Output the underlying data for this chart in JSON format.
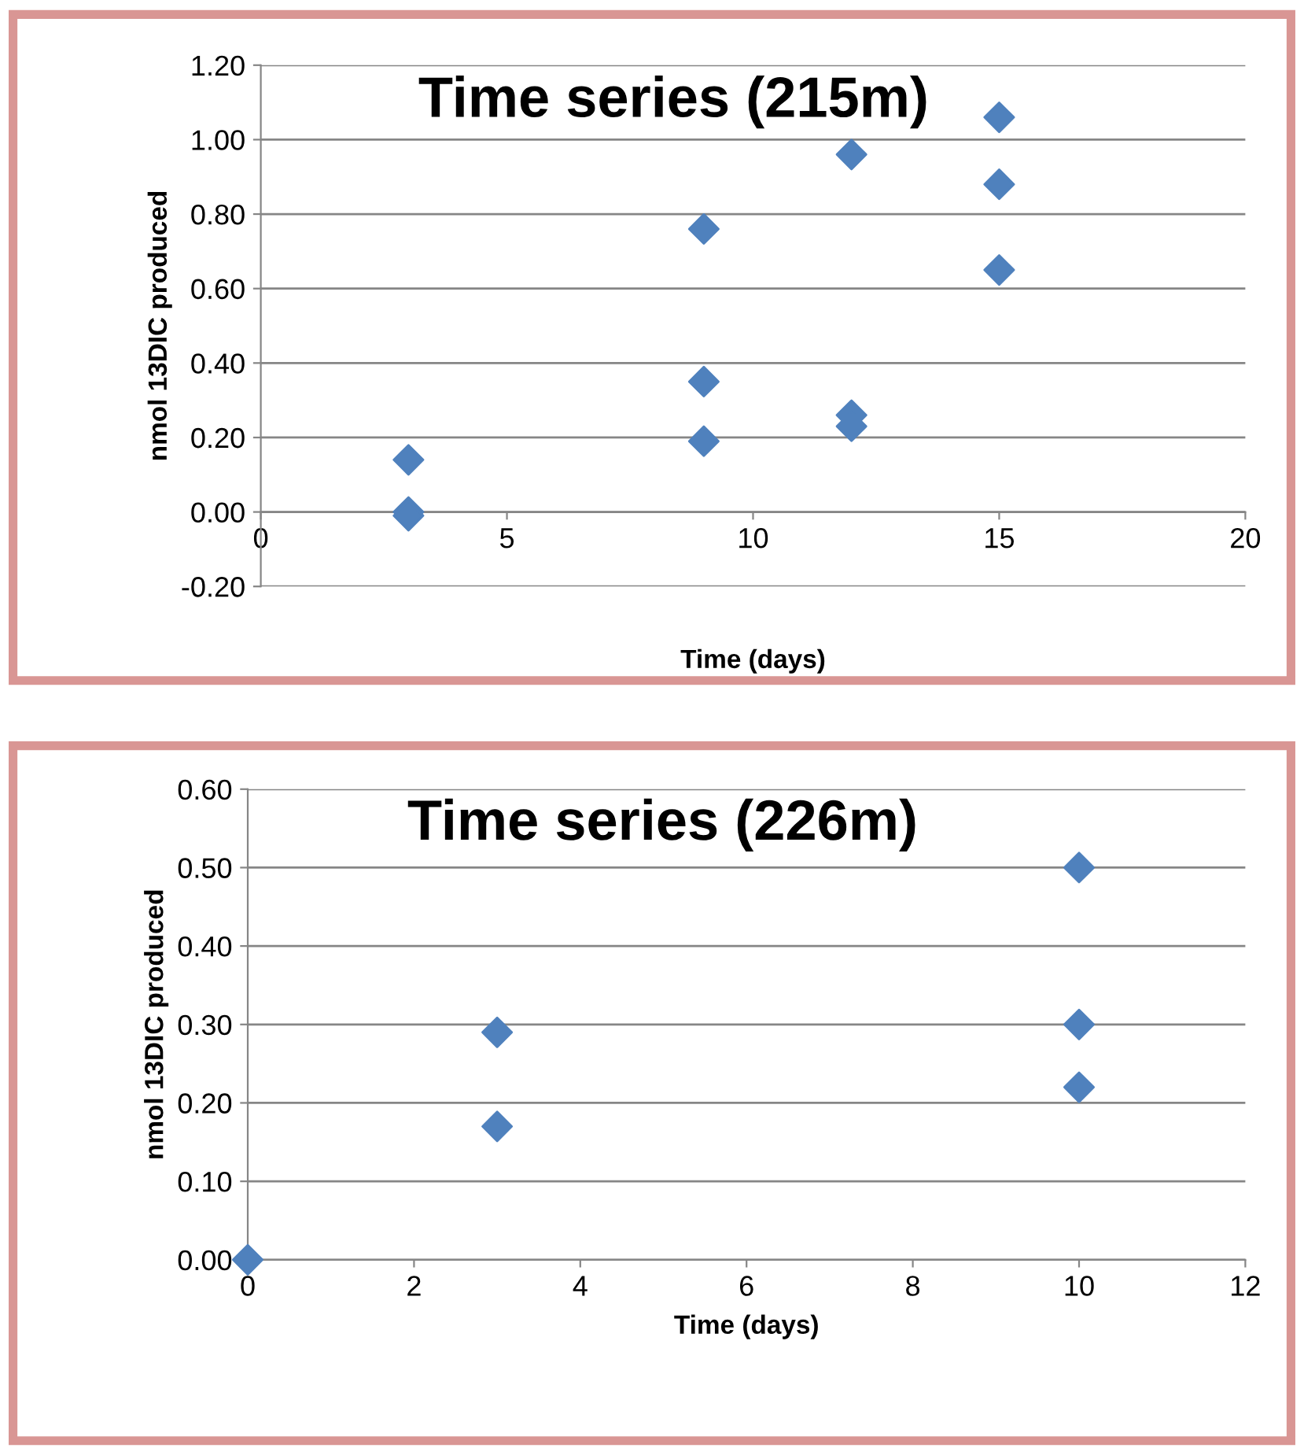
{
  "chart_data": [
    {
      "type": "scatter",
      "title": "Time series (215m)",
      "xlabel": "Time (days)",
      "ylabel": "nmol 13DIC produced",
      "marker": "diamond",
      "grid": "y",
      "xlim": [
        0,
        20
      ],
      "xticks": [
        0,
        5,
        10,
        15,
        20
      ],
      "ylim": [
        -0.2,
        1.2
      ],
      "yticks": [
        {
          "value": -0.2,
          "label": "-0.20"
        },
        {
          "value": 0,
          "label": "0.00"
        },
        {
          "value": 0.2,
          "label": "0.20"
        },
        {
          "value": 0.4,
          "label": "0.40"
        },
        {
          "value": 0.6,
          "label": "0.60"
        },
        {
          "value": 0.8,
          "label": "0.80"
        },
        {
          "value": 1.0,
          "label": "1.00"
        },
        {
          "value": 1.2,
          "label": "1.20"
        }
      ],
      "series": [
        {
          "color": "#4f81bd",
          "x": [
            3,
            3,
            3,
            9,
            9,
            9,
            12,
            12,
            12,
            15,
            15,
            15
          ],
          "values": [
            0.14,
            0.0,
            -0.01,
            0.76,
            0.35,
            0.19,
            0.96,
            0.26,
            0.23,
            1.06,
            0.88,
            0.65
          ]
        }
      ]
    },
    {
      "type": "scatter",
      "title": "Time series (226m)",
      "xlabel": "Time (days)",
      "ylabel": "nmol 13DIC produced",
      "marker": "diamond",
      "grid": "y",
      "xlim": [
        0,
        12
      ],
      "xticks": [
        0,
        2,
        4,
        6,
        8,
        10,
        12
      ],
      "ylim": [
        0,
        0.6
      ],
      "yticks": [
        {
          "value": 0,
          "label": "0.00"
        },
        {
          "value": 0.1,
          "label": "0.10"
        },
        {
          "value": 0.2,
          "label": "0.20"
        },
        {
          "value": 0.3,
          "label": "0.30"
        },
        {
          "value": 0.4,
          "label": "0.40"
        },
        {
          "value": 0.5,
          "label": "0.50"
        },
        {
          "value": 0.6,
          "label": "0.60"
        }
      ],
      "series": [
        {
          "color": "#4f81bd",
          "x": [
            0,
            3,
            3,
            10,
            10,
            10
          ],
          "values": [
            0.0,
            0.29,
            0.17,
            0.5,
            0.3,
            0.22
          ]
        }
      ]
    }
  ]
}
